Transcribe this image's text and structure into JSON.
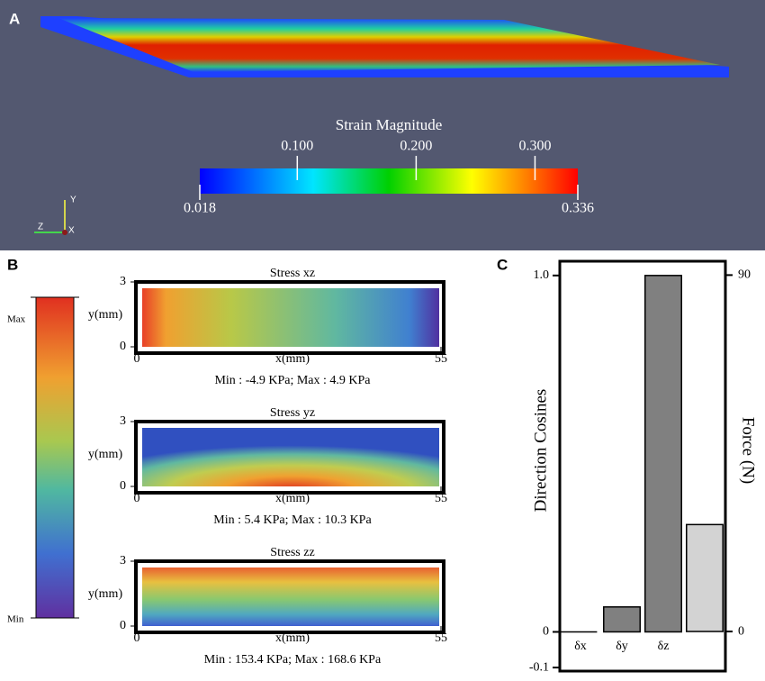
{
  "panel_a": {
    "label": "A",
    "colorbar_title": "Strain Magnitude",
    "ticks": [
      {
        "value": 0.1,
        "label": "0.100"
      },
      {
        "value": 0.2,
        "label": "0.200"
      },
      {
        "value": 0.3,
        "label": "0.300"
      }
    ],
    "range": [
      {
        "value": 0.018,
        "label": "0.018"
      },
      {
        "value": 0.336,
        "label": "0.336"
      }
    ],
    "axes": [
      "Y",
      "Z",
      "X"
    ]
  },
  "panel_b": {
    "label": "B",
    "colorbar": [
      "Max",
      "Min"
    ],
    "plots": [
      {
        "title": "Stress xz",
        "ylabel": "y(mm)",
        "xlabel": "x(mm)",
        "xticks": [
          0,
          55
        ],
        "yticks": [
          0,
          3
        ],
        "caption": "Min : -4.9 KPa;  Max : 4.9 KPa"
      },
      {
        "title": "Stress yz",
        "ylabel": "y(mm)",
        "xlabel": "x(mm)",
        "xticks": [
          0,
          55
        ],
        "yticks": [
          0,
          3
        ],
        "caption": "Min : 5.4 KPa;  Max : 10.3 KPa"
      },
      {
        "title": "Stress zz",
        "ylabel": "y(mm)",
        "xlabel": "x(mm)",
        "xticks": [
          0,
          55
        ],
        "yticks": [
          0,
          3
        ],
        "caption": "Min : 153.4 KPa;  Max : 168.6 KPa"
      }
    ]
  },
  "chart_data": {
    "type": "bar",
    "label": "C",
    "categories": [
      "δx",
      "δy",
      "δz",
      null
    ],
    "series": [
      {
        "name": "Direction Cosines",
        "color": "#808080",
        "values": [
          0,
          0.07,
          1.0,
          null
        ]
      },
      {
        "name": "Force (N)",
        "color": "#d3d3d3",
        "axis": "y2",
        "values": [
          null,
          null,
          null,
          27
        ]
      }
    ],
    "ylim": [
      -0.11,
      1.04
    ],
    "yticks": [
      {
        "value": -0.1,
        "label": "-0.1"
      },
      0,
      {
        "value": 1,
        "label": "1.0"
      }
    ],
    "y2lim": [
      -10,
      93.5
    ],
    "y2ticks": [
      0,
      90
    ]
  }
}
